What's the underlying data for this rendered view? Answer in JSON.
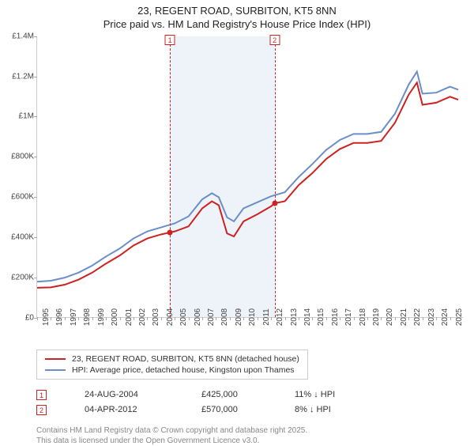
{
  "title_line1": "23, REGENT ROAD, SURBITON, KT5 8NN",
  "title_line2": "Price paid vs. HM Land Registry's House Price Index (HPI)",
  "chart": {
    "type": "line",
    "x_start": 1995,
    "x_end": 2026,
    "ylim": [
      0,
      1400000
    ],
    "ytick_step": 200000,
    "yticks": [
      "£0",
      "£200K",
      "£400K",
      "£600K",
      "£800K",
      "£1M",
      "£1.2M",
      "£1.4M"
    ],
    "xticks": [
      1995,
      1996,
      1997,
      1998,
      1999,
      2000,
      2001,
      2002,
      2003,
      2004,
      2005,
      2006,
      2007,
      2008,
      2009,
      2010,
      2011,
      2012,
      2013,
      2014,
      2015,
      2016,
      2017,
      2018,
      2019,
      2020,
      2021,
      2022,
      2023,
      2024,
      2025
    ],
    "band": {
      "start_year": 2004.65,
      "end_year": 2012.26
    },
    "events": [
      {
        "n": "1",
        "year": 2004.65,
        "price_val": 425000
      },
      {
        "n": "2",
        "year": 2012.26,
        "price_val": 570000
      }
    ],
    "series": [
      {
        "name": "price_paid",
        "color": "#cc2222",
        "width": 2,
        "points": [
          [
            1995,
            150000
          ],
          [
            1996,
            152000
          ],
          [
            1997,
            165000
          ],
          [
            1998,
            190000
          ],
          [
            1999,
            225000
          ],
          [
            2000,
            270000
          ],
          [
            2001,
            310000
          ],
          [
            2002,
            360000
          ],
          [
            2003,
            395000
          ],
          [
            2004,
            415000
          ],
          [
            2004.65,
            425000
          ],
          [
            2005,
            430000
          ],
          [
            2006,
            455000
          ],
          [
            2007,
            545000
          ],
          [
            2007.7,
            580000
          ],
          [
            2008.2,
            560000
          ],
          [
            2008.8,
            420000
          ],
          [
            2009.3,
            405000
          ],
          [
            2010,
            480000
          ],
          [
            2011,
            515000
          ],
          [
            2012,
            555000
          ],
          [
            2012.26,
            570000
          ],
          [
            2013,
            580000
          ],
          [
            2014,
            660000
          ],
          [
            2015,
            720000
          ],
          [
            2016,
            790000
          ],
          [
            2017,
            840000
          ],
          [
            2018,
            870000
          ],
          [
            2019,
            870000
          ],
          [
            2020,
            880000
          ],
          [
            2021,
            970000
          ],
          [
            2022,
            1110000
          ],
          [
            2022.6,
            1170000
          ],
          [
            2023,
            1060000
          ],
          [
            2024,
            1070000
          ],
          [
            2025,
            1100000
          ],
          [
            2025.6,
            1085000
          ]
        ]
      },
      {
        "name": "hpi",
        "color": "#6a8fc7",
        "width": 2,
        "points": [
          [
            1995,
            180000
          ],
          [
            1996,
            185000
          ],
          [
            1997,
            200000
          ],
          [
            1998,
            225000
          ],
          [
            1999,
            260000
          ],
          [
            2000,
            305000
          ],
          [
            2001,
            345000
          ],
          [
            2002,
            395000
          ],
          [
            2003,
            430000
          ],
          [
            2004,
            450000
          ],
          [
            2005,
            470000
          ],
          [
            2006,
            505000
          ],
          [
            2007,
            590000
          ],
          [
            2007.7,
            620000
          ],
          [
            2008.2,
            600000
          ],
          [
            2008.8,
            500000
          ],
          [
            2009.3,
            480000
          ],
          [
            2010,
            545000
          ],
          [
            2011,
            575000
          ],
          [
            2012,
            605000
          ],
          [
            2013,
            625000
          ],
          [
            2014,
            700000
          ],
          [
            2015,
            765000
          ],
          [
            2016,
            835000
          ],
          [
            2017,
            885000
          ],
          [
            2018,
            915000
          ],
          [
            2019,
            915000
          ],
          [
            2020,
            925000
          ],
          [
            2021,
            1015000
          ],
          [
            2022,
            1160000
          ],
          [
            2022.6,
            1225000
          ],
          [
            2023,
            1115000
          ],
          [
            2024,
            1120000
          ],
          [
            2025,
            1150000
          ],
          [
            2025.6,
            1135000
          ]
        ]
      }
    ]
  },
  "legend": {
    "row1": {
      "color": "#cc2222",
      "label": "23, REGENT ROAD, SURBITON, KT5 8NN (detached house)"
    },
    "row2": {
      "color": "#6a8fc7",
      "label": "HPI: Average price, detached house, Kingston upon Thames"
    }
  },
  "events_table": [
    {
      "n": "1",
      "date": "24-AUG-2004",
      "price": "£425,000",
      "delta": "11% ↓ HPI"
    },
    {
      "n": "2",
      "date": "04-APR-2012",
      "price": "£570,000",
      "delta": "8% ↓ HPI"
    }
  ],
  "footer1": "Contains HM Land Registry data © Crown copyright and database right 2025.",
  "footer2": "This data is licensed under the Open Government Licence v3.0."
}
